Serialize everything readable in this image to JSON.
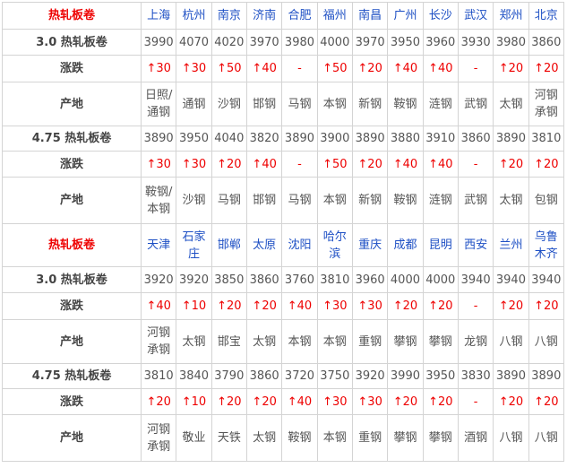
{
  "sections": [
    {
      "header": {
        "title": "热轧板卷",
        "cities": [
          "上海",
          "杭州",
          "南京",
          "济南",
          "合肥",
          "福州",
          "南昌",
          "广州",
          "长沙",
          "武汉",
          "郑州",
          "北京"
        ]
      },
      "rows": [
        {
          "label": "3.0 热轧板卷",
          "cells": [
            3990,
            4070,
            4020,
            3970,
            3980,
            4000,
            3970,
            3950,
            3960,
            3930,
            3980,
            3860
          ]
        },
        {
          "label": "涨跌",
          "cells": [
            "↑30",
            "↑30",
            "↑50",
            "↑40",
            "-",
            "↑50",
            "↑20",
            "↑40",
            "↑40",
            "-",
            "↑20",
            "↑20"
          ]
        },
        {
          "label": "产地",
          "cells": [
            "日照/通钢",
            "通钢",
            "沙钢",
            "邯钢",
            "马钢",
            "本钢",
            "新钢",
            "鞍钢",
            "涟钢",
            "武钢",
            "太钢",
            "河钢承钢"
          ]
        },
        {
          "label": "4.75 热轧板卷",
          "cells": [
            3890,
            3950,
            4040,
            3820,
            3890,
            3900,
            3890,
            3880,
            3910,
            3860,
            3890,
            3810
          ]
        },
        {
          "label": "涨跌",
          "cells": [
            "↑30",
            "↑30",
            "↑20",
            "↑40",
            "-",
            "↑50",
            "↑20",
            "↑40",
            "↑40",
            "-",
            "↑20",
            "↑20"
          ]
        },
        {
          "label": "产地",
          "cells": [
            "鞍钢/本钢",
            "沙钢",
            "马钢",
            "邯钢",
            "马钢",
            "本钢",
            "新钢",
            "鞍钢",
            "涟钢",
            "武钢",
            "太钢",
            "包钢"
          ]
        }
      ]
    },
    {
      "header": {
        "title": "热轧板卷",
        "cities": [
          "天津",
          "石家庄",
          "邯郸",
          "太原",
          "沈阳",
          "哈尔滨",
          "重庆",
          "成都",
          "昆明",
          "西安",
          "兰州",
          "乌鲁木齐"
        ]
      },
      "rows": [
        {
          "label": "3.0 热轧板卷",
          "cells": [
            3920,
            3920,
            3850,
            3860,
            3760,
            3810,
            3960,
            4000,
            4000,
            3940,
            3940,
            3940
          ]
        },
        {
          "label": "涨跌",
          "cells": [
            "↑40",
            "↑10",
            "↑20",
            "↑20",
            "↑40",
            "↑30",
            "↑30",
            "↑20",
            "↑20",
            "-",
            "↑20",
            "↑20"
          ]
        },
        {
          "label": "产地",
          "cells": [
            "河钢承钢",
            "太钢",
            "邯宝",
            "太钢",
            "本钢",
            "本钢",
            "重钢",
            "攀钢",
            "攀钢",
            "龙钢",
            "八钢",
            "八钢"
          ]
        },
        {
          "label": "4.75 热轧板卷",
          "cells": [
            3810,
            3840,
            3790,
            3860,
            3720,
            3750,
            3920,
            3990,
            3950,
            3830,
            3890,
            3890
          ]
        },
        {
          "label": "涨跌",
          "cells": [
            "↑20",
            "↑10",
            "↑20",
            "↑20",
            "↑40",
            "↑30",
            "↑30",
            "↑20",
            "↑20",
            "-",
            "↑20",
            "↑20"
          ]
        },
        {
          "label": "产地",
          "cells": [
            "河钢承钢",
            "敬业",
            "天铁",
            "太钢",
            "鞍钢",
            "本钢",
            "重钢",
            "攀钢",
            "攀钢",
            "酒钢",
            "八钢",
            "八钢"
          ]
        }
      ]
    }
  ]
}
